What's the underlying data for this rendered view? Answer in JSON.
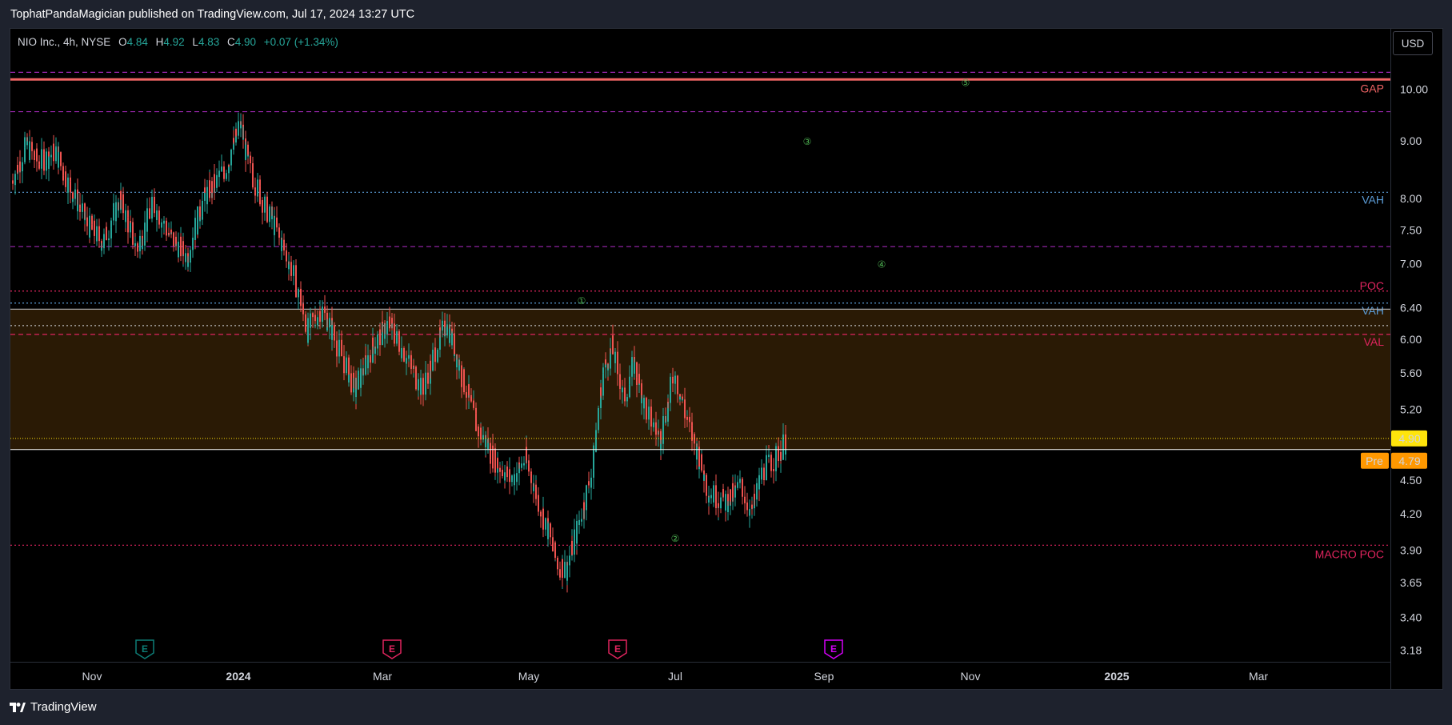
{
  "publisher": "TophatPandaMagician published on TradingView.com, Jul 17, 2024 13:27 UTC",
  "legend": {
    "symbol": "NIO Inc., 4h, NYSE",
    "o_label": "O",
    "o": "4.84",
    "h_label": "H",
    "h": "4.92",
    "l_label": "L",
    "l": "4.83",
    "c_label": "C",
    "c": "4.90",
    "change": "+0.07 (+1.34%)"
  },
  "currency": "USD",
  "brand": "TradingView",
  "colors": {
    "up": "#26a69a",
    "down": "#ef5350",
    "value_area": "#2a1a05",
    "gap": "#f06464",
    "vah_blue": "#5b9bd5",
    "poc_pink": "#e0245e",
    "wave_green": "#4caf50",
    "last_price": "#ffe40b",
    "pre_market": "#ff9800"
  },
  "chart_data": {
    "type": "candlestick",
    "interval": "4h",
    "y_scale": "log",
    "ylim": [
      3.1,
      10.7
    ],
    "xlim": [
      "2023-09-28",
      "2025-04-25"
    ],
    "x_ticks": [
      {
        "label": "Nov",
        "date": "2023-11-01",
        "bold": false
      },
      {
        "label": "2024",
        "date": "2024-01-01",
        "bold": true
      },
      {
        "label": "Mar",
        "date": "2024-03-01",
        "bold": false
      },
      {
        "label": "May",
        "date": "2024-05-01",
        "bold": false
      },
      {
        "label": "Jul",
        "date": "2024-07-01",
        "bold": false
      },
      {
        "label": "Sep",
        "date": "2024-09-01",
        "bold": false
      },
      {
        "label": "Nov",
        "date": "2024-11-01",
        "bold": false
      },
      {
        "label": "2025",
        "date": "2025-01-01",
        "bold": true
      },
      {
        "label": "Mar",
        "date": "2025-03-01",
        "bold": false
      }
    ],
    "y_ticks": [
      "10.00",
      "9.00",
      "8.00",
      "7.50",
      "7.00",
      "6.40",
      "6.00",
      "5.60",
      "5.20",
      "4.50",
      "4.20",
      "3.90",
      "3.65",
      "3.40",
      "3.18"
    ],
    "price_path": [
      {
        "date": "2023-09-29",
        "price": 8.3
      },
      {
        "date": "2023-10-05",
        "price": 8.9
      },
      {
        "date": "2023-10-10",
        "price": 8.6
      },
      {
        "date": "2023-10-17",
        "price": 8.8
      },
      {
        "date": "2023-10-23",
        "price": 8.2
      },
      {
        "date": "2023-10-30",
        "price": 7.6
      },
      {
        "date": "2023-11-06",
        "price": 7.3
      },
      {
        "date": "2023-11-13",
        "price": 8.0
      },
      {
        "date": "2023-11-20",
        "price": 7.2
      },
      {
        "date": "2023-11-27",
        "price": 7.9
      },
      {
        "date": "2023-12-04",
        "price": 7.4
      },
      {
        "date": "2023-12-11",
        "price": 7.1
      },
      {
        "date": "2023-12-18",
        "price": 8.0
      },
      {
        "date": "2023-12-27",
        "price": 8.5
      },
      {
        "date": "2024-01-02",
        "price": 9.3
      },
      {
        "date": "2024-01-05",
        "price": 8.6
      },
      {
        "date": "2024-01-10",
        "price": 8.1
      },
      {
        "date": "2024-01-18",
        "price": 7.4
      },
      {
        "date": "2024-01-24",
        "price": 6.9
      },
      {
        "date": "2024-01-30",
        "price": 6.1
      },
      {
        "date": "2024-02-05",
        "price": 6.4
      },
      {
        "date": "2024-02-12",
        "price": 5.9
      },
      {
        "date": "2024-02-19",
        "price": 5.4
      },
      {
        "date": "2024-02-26",
        "price": 5.9
      },
      {
        "date": "2024-03-04",
        "price": 6.2
      },
      {
        "date": "2024-03-11",
        "price": 5.8
      },
      {
        "date": "2024-03-18",
        "price": 5.4
      },
      {
        "date": "2024-03-25",
        "price": 6.0
      },
      {
        "date": "2024-03-28",
        "price": 6.2
      },
      {
        "date": "2024-04-03",
        "price": 5.6
      },
      {
        "date": "2024-04-10",
        "price": 5.0
      },
      {
        "date": "2024-04-17",
        "price": 4.7
      },
      {
        "date": "2024-04-24",
        "price": 4.5
      },
      {
        "date": "2024-04-30",
        "price": 4.7
      },
      {
        "date": "2024-05-07",
        "price": 4.2
      },
      {
        "date": "2024-05-13",
        "price": 3.8
      },
      {
        "date": "2024-05-17",
        "price": 3.75
      },
      {
        "date": "2024-05-22",
        "price": 4.1
      },
      {
        "date": "2024-05-28",
        "price": 4.6
      },
      {
        "date": "2024-06-01",
        "price": 5.6
      },
      {
        "date": "2024-06-05",
        "price": 5.9
      },
      {
        "date": "2024-06-10",
        "price": 5.3
      },
      {
        "date": "2024-06-14",
        "price": 5.7
      },
      {
        "date": "2024-06-19",
        "price": 5.2
      },
      {
        "date": "2024-06-25",
        "price": 4.9
      },
      {
        "date": "2024-07-01",
        "price": 5.6
      },
      {
        "date": "2024-07-05",
        "price": 5.2
      },
      {
        "date": "2024-07-10",
        "price": 4.8
      },
      {
        "date": "2024-07-15",
        "price": 4.4
      },
      {
        "date": "2024-07-22",
        "price": 4.3
      },
      {
        "date": "2024-07-29",
        "price": 4.45
      },
      {
        "date": "2024-08-02",
        "price": 4.2
      },
      {
        "date": "2024-08-07",
        "price": 4.6
      },
      {
        "date": "2024-08-12",
        "price": 4.7
      },
      {
        "date": "2024-08-17",
        "price": 4.9
      }
    ],
    "levels": [
      {
        "label": "",
        "price": 10.35,
        "style": "dashed",
        "color": "#9c27b0"
      },
      {
        "label": "GAP",
        "price": 10.2,
        "style": "solid",
        "color": "#f06464"
      },
      {
        "label": "",
        "price": 9.55,
        "style": "dashed",
        "color": "#9c27b0"
      },
      {
        "label": "VAH",
        "price": 8.1,
        "style": "dotted",
        "color": "#5b9bd5"
      },
      {
        "label": "",
        "price": 7.25,
        "style": "dashed",
        "color": "#9c27b0"
      },
      {
        "label": "POC",
        "price": 6.62,
        "style": "dotted",
        "color": "#e0245e"
      },
      {
        "label": "VAH",
        "price": 6.46,
        "style": "dotted",
        "color": "#5b9bd5"
      },
      {
        "label": "",
        "price": 6.38,
        "style": "solid",
        "color": "#aaaaaa"
      },
      {
        "label": "",
        "price": 6.17,
        "style": "dotted",
        "color": "#bbbbbb"
      },
      {
        "label": "VAL",
        "price": 6.06,
        "style": "dashed",
        "color": "#e0245e"
      },
      {
        "label": "MACRO POC",
        "price": 3.94,
        "style": "dotted",
        "color": "#e0245e"
      }
    ],
    "value_area": {
      "high": 6.38,
      "low": 4.79
    },
    "last_price": {
      "label": "4.90",
      "price": 4.9
    },
    "pre_market": {
      "tag": "Pre",
      "label": "4.79",
      "price": 4.79
    },
    "wave_labels": [
      {
        "label": "①",
        "date": "2024-05-23",
        "price": 6.5
      },
      {
        "label": "②",
        "date": "2024-07-01",
        "price": 4.0
      },
      {
        "label": "③",
        "date": "2024-08-25",
        "price": 9.0
      },
      {
        "label": "④",
        "date": "2024-09-25",
        "price": 7.0
      },
      {
        "label": "⑤",
        "date": "2024-10-30",
        "price": 10.15
      }
    ],
    "earnings_markers": [
      {
        "label": "E",
        "date": "2023-11-23",
        "color": "#0d7e77"
      },
      {
        "label": "E",
        "date": "2024-03-05",
        "color": "#e0245e"
      },
      {
        "label": "E",
        "date": "2024-06-07",
        "color": "#e0245e"
      },
      {
        "label": "E",
        "date": "2024-09-05",
        "color": "#d500f9"
      }
    ]
  }
}
